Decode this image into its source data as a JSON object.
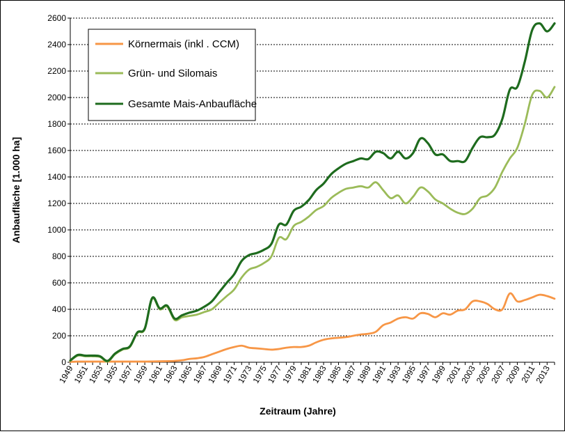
{
  "chart_data": {
    "type": "line",
    "title": "",
    "xlabel": "Zeitraum (Jahre)",
    "ylabel": "Anbaufläche [1.000 ha]",
    "ylim": [
      0,
      2600
    ],
    "yticks": [
      0,
      200,
      400,
      600,
      800,
      1000,
      1200,
      1400,
      1600,
      1800,
      2000,
      2200,
      2400,
      2600
    ],
    "xlim": [
      1949,
      2014
    ],
    "xtick_labels": [
      "1949",
      "1951",
      "1953",
      "1955",
      "1957",
      "1959",
      "1961",
      "1963",
      "1965",
      "1967",
      "1969",
      "1971",
      "1973",
      "1975",
      "1977",
      "1979",
      "1981",
      "1983",
      "1985",
      "1987",
      "1989",
      "1991",
      "1993",
      "1995",
      "1997",
      "1999",
      "2001",
      "2003",
      "2005",
      "2007",
      "2009",
      "2011",
      "2013"
    ],
    "grid": true,
    "legend_position": "top-left",
    "x": [
      1949,
      1950,
      1951,
      1952,
      1953,
      1954,
      1955,
      1956,
      1957,
      1958,
      1959,
      1960,
      1961,
      1962,
      1963,
      1964,
      1965,
      1966,
      1967,
      1968,
      1969,
      1970,
      1971,
      1972,
      1973,
      1974,
      1975,
      1976,
      1977,
      1978,
      1979,
      1980,
      1981,
      1982,
      1983,
      1984,
      1985,
      1986,
      1987,
      1988,
      1989,
      1990,
      1991,
      1992,
      1993,
      1994,
      1995,
      1996,
      1997,
      1998,
      1999,
      2000,
      2001,
      2002,
      2003,
      2004,
      2005,
      2006,
      2007,
      2008,
      2009,
      2010,
      2011,
      2012,
      2013,
      2014
    ],
    "series": [
      {
        "name": "Körnermais (inkl . CCM)",
        "color": "#f79646",
        "values": [
          3,
          5,
          5,
          5,
          5,
          5,
          5,
          5,
          5,
          5,
          5,
          6,
          7,
          8,
          10,
          15,
          25,
          30,
          40,
          60,
          80,
          100,
          115,
          125,
          110,
          105,
          100,
          95,
          100,
          110,
          115,
          115,
          125,
          150,
          170,
          180,
          185,
          190,
          200,
          210,
          215,
          230,
          280,
          300,
          330,
          340,
          330,
          370,
          365,
          340,
          370,
          360,
          390,
          400,
          460,
          460,
          440,
          400,
          400,
          520,
          460,
          470,
          490,
          510,
          500,
          480
        ]
      },
      {
        "name": "Grün- und Silomais",
        "color": "#9bbb59",
        "values": [
          10,
          50,
          45,
          45,
          40,
          5,
          60,
          95,
          115,
          220,
          250,
          480,
          400,
          420,
          320,
          340,
          350,
          360,
          380,
          400,
          450,
          500,
          550,
          640,
          700,
          720,
          750,
          800,
          940,
          930,
          1030,
          1060,
          1100,
          1150,
          1180,
          1240,
          1280,
          1310,
          1320,
          1330,
          1320,
          1360,
          1300,
          1240,
          1260,
          1200,
          1250,
          1320,
          1290,
          1230,
          1200,
          1160,
          1130,
          1120,
          1160,
          1240,
          1260,
          1320,
          1440,
          1540,
          1620,
          1800,
          2020,
          2050,
          2000,
          2080
        ]
      },
      {
        "name": "Gesamte Mais-Anbaufläche",
        "color": "#1e6b1e",
        "values": [
          13,
          55,
          50,
          50,
          45,
          10,
          65,
          100,
          120,
          225,
          255,
          486,
          407,
          428,
          330,
          355,
          375,
          390,
          420,
          460,
          530,
          600,
          665,
          765,
          810,
          825,
          850,
          895,
          1040,
          1040,
          1145,
          1175,
          1225,
          1300,
          1350,
          1420,
          1465,
          1500,
          1520,
          1540,
          1535,
          1590,
          1580,
          1540,
          1590,
          1540,
          1580,
          1690,
          1655,
          1570,
          1570,
          1520,
          1520,
          1520,
          1620,
          1700,
          1700,
          1720,
          1840,
          2060,
          2080,
          2270,
          2510,
          2560,
          2500,
          2560
        ]
      }
    ]
  }
}
